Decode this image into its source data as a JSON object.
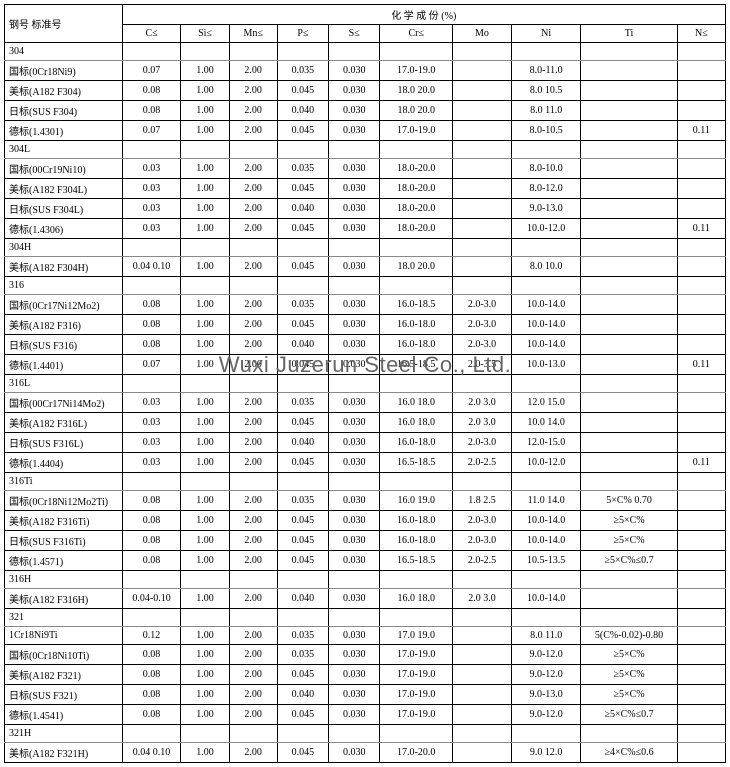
{
  "watermark": "Wuxi Juzerun Steel Co., Ltd.",
  "header": {
    "row_label": "钢号  标准号",
    "composition_title": "化 学 成 份  (%)",
    "cols": [
      "C≤",
      "Si≤",
      "Mn≤",
      "P≤",
      "S≤",
      "Cr≤",
      "Mo",
      "Ni",
      "Ti",
      "N≤"
    ]
  },
  "col_classes": [
    "col-c",
    "col-si",
    "col-mn",
    "col-p",
    "col-s",
    "col-cr",
    "col-mo",
    "col-ni",
    "col-ti",
    "col-n"
  ],
  "groups": [
    {
      "name": "304",
      "rows": [
        {
          "label": "国标(0Cr18Ni9)",
          "cells": [
            "0.07",
            "1.00",
            "2.00",
            "0.035",
            "0.030",
            "17.0-19.0",
            "",
            "8.0-11.0",
            "",
            ""
          ]
        },
        {
          "label": "美标(A182 F304)",
          "cells": [
            "0.08",
            "1.00",
            "2.00",
            "0.045",
            "0.030",
            "18.0 20.0",
            "",
            "8.0 10.5",
            "",
            ""
          ]
        },
        {
          "label": "日标(SUS F304)",
          "cells": [
            "0.08",
            "1.00",
            "2.00",
            "0.040",
            "0.030",
            "18.0 20.0",
            "",
            "8.0 11.0",
            "",
            ""
          ]
        },
        {
          "label": "德标(1.4301)",
          "cells": [
            "0.07",
            "1.00",
            "2.00",
            "0.045",
            "0.030",
            "17.0-19.0",
            "",
            "8.0-10.5",
            "",
            "0.11"
          ]
        }
      ]
    },
    {
      "name": "304L",
      "rows": [
        {
          "label": "国标(00Cr19Ni10)",
          "cells": [
            "0.03",
            "1.00",
            "2.00",
            "0.035",
            "0.030",
            "18.0-20.0",
            "",
            "8.0-10.0",
            "",
            ""
          ]
        },
        {
          "label": "美标(A182 F304L)",
          "cells": [
            "0.03",
            "1.00",
            "2.00",
            "0.045",
            "0.030",
            "18.0-20.0",
            "",
            "8.0-12.0",
            "",
            ""
          ]
        },
        {
          "label": "日标(SUS F304L)",
          "cells": [
            "0.03",
            "1.00",
            "2.00",
            "0.040",
            "0.030",
            "18.0-20.0",
            "",
            "9.0-13.0",
            "",
            ""
          ]
        },
        {
          "label": "德标(1.4306)",
          "cells": [
            "0.03",
            "1.00",
            "2.00",
            "0.045",
            "0.030",
            "18.0-20.0",
            "",
            "10.0-12.0",
            "",
            "0.11"
          ]
        }
      ]
    },
    {
      "name": "304H",
      "rows": [
        {
          "label": "美标(A182 F304H)",
          "cells": [
            "0.04 0.10",
            "1.00",
            "2.00",
            "0.045",
            "0.030",
            "18.0 20.0",
            "",
            "8.0 10.0",
            "",
            ""
          ]
        }
      ]
    },
    {
      "name": "316",
      "rows": [
        {
          "label": "国标(0Cr17Ni12Mo2)",
          "cells": [
            "0.08",
            "1.00",
            "2.00",
            "0.035",
            "0.030",
            "16.0-18.5",
            "2.0-3.0",
            "10.0-14.0",
            "",
            ""
          ]
        },
        {
          "label": "美标(A182 F316)",
          "cells": [
            "0.08",
            "1.00",
            "2.00",
            "0.045",
            "0.030",
            "16.0-18.0",
            "2.0-3.0",
            "10.0-14.0",
            "",
            ""
          ]
        },
        {
          "label": "日标(SUS F316)",
          "cells": [
            "0.08",
            "1.00",
            "2.00",
            "0.040",
            "0.030",
            "16.0-18.0",
            "2.0-3.0",
            "10.0-14.0",
            "",
            ""
          ]
        },
        {
          "label": "德标(1.4401)",
          "cells": [
            "0.07",
            "1.00",
            "2.00",
            "0.045",
            "0.030",
            "16.5-18.5",
            "2.0-3.5",
            "10.0-13.0",
            "",
            "0.11"
          ]
        }
      ]
    },
    {
      "name": "316L",
      "rows": [
        {
          "label": "国标(00Cr17Ni14Mo2)",
          "cells": [
            "0.03",
            "1.00",
            "2.00",
            "0.035",
            "0.030",
            "16.0 18.0",
            "2.0 3.0",
            "12.0 15.0",
            "",
            ""
          ]
        },
        {
          "label": "美标(A182 F316L)",
          "cells": [
            "0.03",
            "1.00",
            "2.00",
            "0.045",
            "0.030",
            "16.0 18.0",
            "2.0 3.0",
            "10.0 14.0",
            "",
            ""
          ]
        },
        {
          "label": "日标(SUS F316L)",
          "cells": [
            "0.03",
            "1.00",
            "2.00",
            "0.040",
            "0.030",
            "16.0-18.0",
            "2.0-3.0",
            "12.0-15.0",
            "",
            ""
          ]
        },
        {
          "label": "德标(1.4404)",
          "cells": [
            "0.03",
            "1.00",
            "2.00",
            "0.045",
            "0.030",
            "16.5-18.5",
            "2.0-2.5",
            "10.0-12.0",
            "",
            "0.11"
          ]
        }
      ]
    },
    {
      "name": "316Ti",
      "rows": [
        {
          "label": "国标(0Cr18Ni12Mo2Ti)",
          "cells": [
            "0.08",
            "1.00",
            "2.00",
            "0.035",
            "0.030",
            "16.0 19.0",
            "1.8 2.5",
            "11.0 14.0",
            "5×C% 0.70",
            ""
          ]
        },
        {
          "label": "美标(A182 F316Ti)",
          "cells": [
            "0.08",
            "1.00",
            "2.00",
            "0.045",
            "0.030",
            "16.0-18.0",
            "2.0-3.0",
            "10.0-14.0",
            "≥5×C%",
            ""
          ]
        },
        {
          "label": "日标(SUS F316Ti)",
          "cells": [
            "0.08",
            "1.00",
            "2.00",
            "0.045",
            "0.030",
            "16.0-18.0",
            "2.0-3.0",
            "10.0-14.0",
            "≥5×C%",
            ""
          ]
        },
        {
          "label": "德标(1.4571)",
          "cells": [
            "0.08",
            "1.00",
            "2.00",
            "0.045",
            "0.030",
            "16.5-18.5",
            "2.0-2.5",
            "10.5-13.5",
            "≥5×C%≤0.7",
            ""
          ]
        }
      ]
    },
    {
      "name": "316H",
      "rows": [
        {
          "label": "美标(A182 F316H)",
          "cells": [
            "0.04-0.10",
            "1.00",
            "2.00",
            "0.040",
            "0.030",
            "16.0 18.0",
            "2.0 3.0",
            "10.0-14.0",
            "",
            ""
          ]
        }
      ]
    },
    {
      "name": "321",
      "rows": [
        {
          "label": "1Cr18Ni9Ti",
          "cells": [
            "0.12",
            "1.00",
            "2.00",
            "0.035",
            "0.030",
            "17.0 19.0",
            "",
            "8.0 11.0",
            "5(C%-0.02)-0.80",
            ""
          ]
        },
        {
          "label": "国标(0Cr18Ni10Ti)",
          "cells": [
            "0.08",
            "1.00",
            "2.00",
            "0.035",
            "0.030",
            "17.0-19.0",
            "",
            "9.0-12.0",
            "≥5×C%",
            ""
          ]
        },
        {
          "label": "美标(A182 F321)",
          "cells": [
            "0.08",
            "1.00",
            "2.00",
            "0.045",
            "0.030",
            "17.0-19.0",
            "",
            "9.0-12.0",
            "≥5×C%",
            ""
          ]
        },
        {
          "label": "日标(SUS F321)",
          "cells": [
            "0.08",
            "1.00",
            "2.00",
            "0.040",
            "0.030",
            "17.0-19.0",
            "",
            "9.0-13.0",
            "≥5×C%",
            ""
          ]
        },
        {
          "label": "德标(1.4541)",
          "cells": [
            "0.08",
            "1.00",
            "2.00",
            "0.045",
            "0.030",
            "17.0-19.0",
            "",
            "9.0-12.0",
            "≥5×C%≤0.7",
            ""
          ]
        }
      ]
    },
    {
      "name": "321H",
      "rows": [
        {
          "label": "美标(A182 F321H)",
          "cells": [
            "0.04 0.10",
            "1.00",
            "2.00",
            "0.045",
            "0.030",
            "17.0-20.0",
            "",
            "9.0 12.0",
            "≥4×C%≤0.6",
            ""
          ]
        }
      ]
    }
  ]
}
